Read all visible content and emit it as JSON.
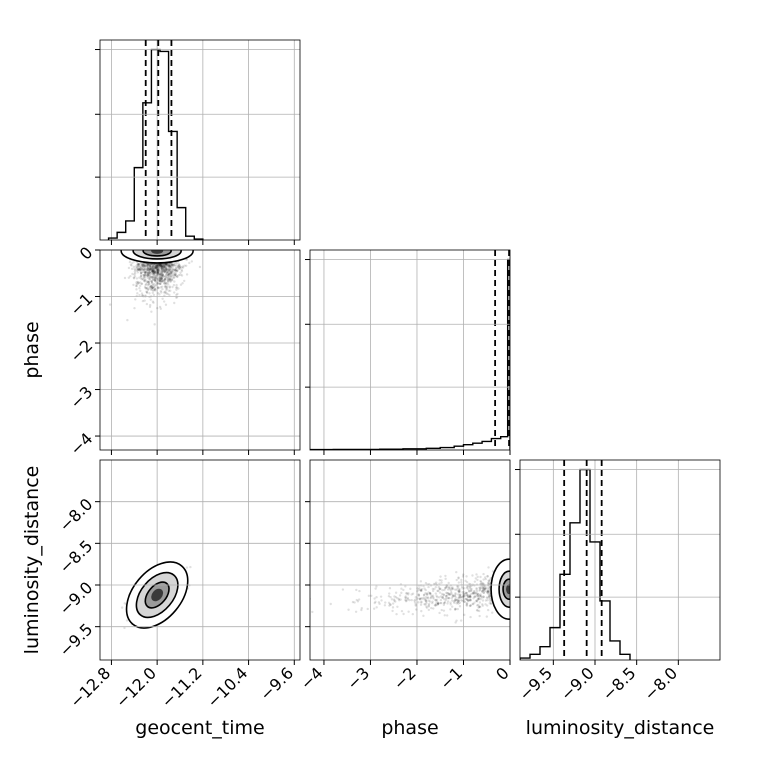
{
  "chart_data": {
    "type": "corner",
    "parameters": [
      "geocent_time",
      "phase",
      "luminosity_distance"
    ],
    "grid": true,
    "axis_labels": {
      "geocent_time": "geocent_time",
      "phase": "phase",
      "luminosity_distance": "luminosity_distance"
    },
    "ranges": {
      "geocent_time": [
        -13.0,
        -9.5
      ],
      "phase": [
        -4.3,
        0.0
      ],
      "luminosity_distance": [
        -9.9,
        -7.5
      ]
    },
    "ticks": {
      "geocent_time": [
        -12.8,
        -12.0,
        -11.2,
        -10.4,
        -9.6
      ],
      "phase": [
        -4,
        -3,
        -2,
        -1,
        0
      ],
      "luminosity_distance": [
        -9.5,
        -9.0,
        -8.5,
        -8.0
      ]
    },
    "tick_labels": {
      "geocent_time": [
        "−12.8",
        "−12.0",
        "−11.2",
        "−10.4",
        "−9.6"
      ],
      "phase": [
        "−4",
        "−3",
        "−2",
        "−1",
        "0"
      ],
      "luminosity_distance": [
        "−9.5",
        "−9.0",
        "−8.5",
        "−8.0"
      ]
    },
    "quantiles": {
      "geocent_time": [
        -12.2,
        -11.98,
        -11.75
      ],
      "phase": [
        -0.32,
        -0.02
      ],
      "luminosity_distance": [
        -9.37,
        -9.1,
        -8.92
      ]
    },
    "histograms": {
      "geocent_time": {
        "bin_edges": [
          -12.85,
          -12.7,
          -12.55,
          -12.4,
          -12.25,
          -12.1,
          -11.95,
          -11.8,
          -11.65,
          -11.5,
          -11.35,
          -11.2
        ],
        "counts": [
          1,
          4,
          10,
          38,
          72,
          100,
          99,
          57,
          17,
          2,
          0.5
        ]
      },
      "phase": {
        "bin_edges": [
          -4.3,
          -3.8,
          -3.3,
          -2.8,
          -2.3,
          -1.8,
          -1.5,
          -1.2,
          -1.0,
          -0.8,
          -0.6,
          -0.4,
          -0.2,
          -0.05,
          0.0
        ],
        "counts": [
          0.2,
          0.3,
          0.3,
          0.4,
          0.6,
          0.9,
          1.3,
          2.0,
          2.8,
          3.6,
          4.5,
          6.0,
          7.0,
          100
        ]
      },
      "luminosity_distance": {
        "bin_edges": [
          -9.9,
          -9.78,
          -9.66,
          -9.54,
          -9.42,
          -9.3,
          -9.18,
          -9.06,
          -8.94,
          -8.82,
          -8.7,
          -8.58
        ],
        "counts": [
          1,
          3,
          7,
          17,
          45,
          72,
          100,
          62,
          31,
          10,
          3
        ]
      }
    },
    "density_peaks": {
      "geocent_time__phase": {
        "x": -12.0,
        "y": -0.02
      },
      "geocent_time__luminosity_distance": {
        "x": -12.0,
        "y": -9.12
      },
      "phase__luminosity_distance": {
        "x": -0.02,
        "y": -9.05
      }
    }
  }
}
